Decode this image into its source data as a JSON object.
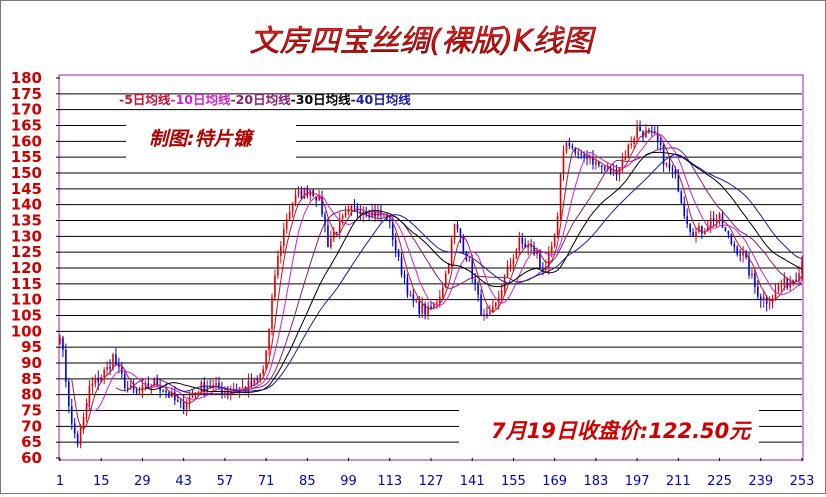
{
  "chart_data": {
    "type": "candlestick",
    "title": "文房四宝丝绸(裸版)K线图",
    "author_label": "制图:特片镰",
    "close_note": "7月19日收盘价:122.50元",
    "legend": [
      {
        "label": "-5日均线",
        "color": "#c8102e"
      },
      {
        "label": "-10日均线",
        "color": "#d020d0"
      },
      {
        "label": "-20日均线",
        "color": "#8b1e6b"
      },
      {
        "label": "-30日均线",
        "color": "#000000"
      },
      {
        "label": "-40日均线",
        "color": "#1a1aa8"
      }
    ],
    "y_ticks": [
      180,
      175,
      170,
      165,
      160,
      155,
      150,
      145,
      140,
      135,
      130,
      125,
      120,
      115,
      110,
      105,
      100,
      95,
      90,
      85,
      80,
      75,
      70,
      65,
      60
    ],
    "x_ticks": [
      1,
      15,
      29,
      43,
      57,
      71,
      85,
      99,
      113,
      127,
      141,
      155,
      169,
      183,
      197,
      211,
      225,
      239,
      253
    ],
    "ylim": [
      60,
      180
    ],
    "xlim": [
      1,
      253
    ],
    "up_color": "#e00000",
    "down_color": "#0000e0",
    "close_anchors": [
      [
        1,
        100
      ],
      [
        3,
        85
      ],
      [
        5,
        70
      ],
      [
        7,
        65
      ],
      [
        9,
        72
      ],
      [
        11,
        82
      ],
      [
        14,
        85
      ],
      [
        17,
        88
      ],
      [
        19,
        92
      ],
      [
        21,
        87
      ],
      [
        24,
        82
      ],
      [
        27,
        80
      ],
      [
        30,
        82
      ],
      [
        33,
        84
      ],
      [
        36,
        82
      ],
      [
        39,
        79
      ],
      [
        42,
        76
      ],
      [
        45,
        79
      ],
      [
        48,
        82
      ],
      [
        51,
        83
      ],
      [
        54,
        82
      ],
      [
        57,
        81
      ],
      [
        60,
        82
      ],
      [
        63,
        82
      ],
      [
        66,
        83
      ],
      [
        68,
        84
      ],
      [
        70,
        88
      ],
      [
        72,
        100
      ],
      [
        74,
        118
      ],
      [
        76,
        128
      ],
      [
        78,
        136
      ],
      [
        80,
        141
      ],
      [
        82,
        143
      ],
      [
        84,
        144
      ],
      [
        86,
        145
      ],
      [
        88,
        143
      ],
      [
        90,
        138
      ],
      [
        92,
        128
      ],
      [
        94,
        131
      ],
      [
        96,
        134
      ],
      [
        98,
        136
      ],
      [
        100,
        138
      ],
      [
        103,
        139
      ],
      [
        106,
        138
      ],
      [
        109,
        137
      ],
      [
        112,
        136
      ],
      [
        114,
        130
      ],
      [
        116,
        122
      ],
      [
        118,
        117
      ],
      [
        120,
        110
      ],
      [
        122,
        108
      ],
      [
        124,
        107
      ],
      [
        126,
        106
      ],
      [
        128,
        108
      ],
      [
        130,
        112
      ],
      [
        132,
        118
      ],
      [
        134,
        128
      ],
      [
        135,
        133
      ],
      [
        137,
        130
      ],
      [
        139,
        124
      ],
      [
        141,
        118
      ],
      [
        143,
        110
      ],
      [
        145,
        104
      ],
      [
        147,
        104
      ],
      [
        149,
        108
      ],
      [
        151,
        114
      ],
      [
        153,
        119
      ],
      [
        155,
        124
      ],
      [
        157,
        128
      ],
      [
        159,
        127
      ],
      [
        161,
        126
      ],
      [
        163,
        124
      ],
      [
        164,
        120
      ],
      [
        166,
        121
      ],
      [
        168,
        125
      ],
      [
        170,
        135
      ],
      [
        171,
        148
      ],
      [
        172,
        158
      ],
      [
        174,
        160
      ],
      [
        176,
        156
      ],
      [
        178,
        154
      ],
      [
        180,
        156
      ],
      [
        183,
        153
      ],
      [
        186,
        151
      ],
      [
        189,
        150
      ],
      [
        192,
        154
      ],
      [
        195,
        160
      ],
      [
        197,
        164
      ],
      [
        199,
        163
      ],
      [
        201,
        162
      ],
      [
        203,
        161
      ],
      [
        205,
        157
      ],
      [
        207,
        152
      ],
      [
        209,
        150
      ],
      [
        211,
        146
      ],
      [
        213,
        138
      ],
      [
        215,
        133
      ],
      [
        217,
        131
      ],
      [
        219,
        132
      ],
      [
        221,
        134
      ],
      [
        223,
        136
      ],
      [
        225,
        135
      ],
      [
        227,
        131
      ],
      [
        229,
        128
      ],
      [
        231,
        126
      ],
      [
        233,
        124
      ],
      [
        235,
        119
      ],
      [
        237,
        114
      ],
      [
        239,
        111
      ],
      [
        241,
        110
      ],
      [
        243,
        111
      ],
      [
        245,
        114
      ],
      [
        247,
        115
      ],
      [
        249,
        116
      ],
      [
        251,
        118
      ],
      [
        253,
        122.5
      ]
    ]
  }
}
